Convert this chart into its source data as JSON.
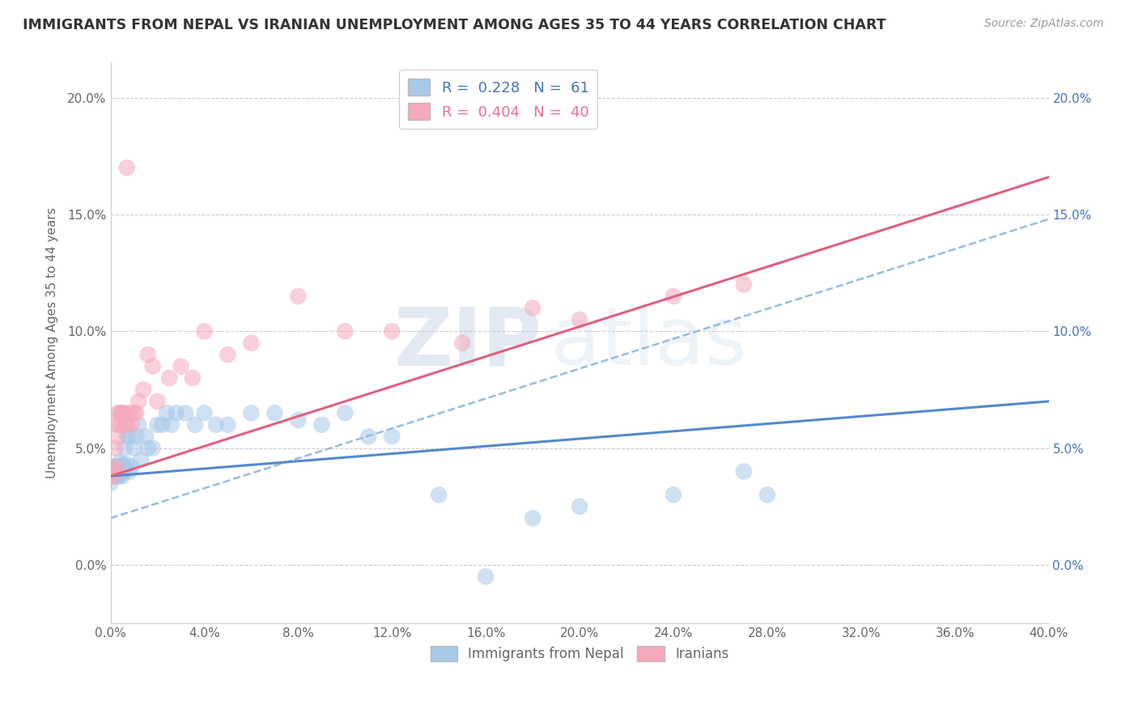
{
  "title": "IMMIGRANTS FROM NEPAL VS IRANIAN UNEMPLOYMENT AMONG AGES 35 TO 44 YEARS CORRELATION CHART",
  "source_text": "Source: ZipAtlas.com",
  "ylabel": "Unemployment Among Ages 35 to 44 years",
  "xlim": [
    0.0,
    0.4
  ],
  "ylim": [
    -0.025,
    0.215
  ],
  "xticks": [
    0.0,
    0.04,
    0.08,
    0.12,
    0.16,
    0.2,
    0.24,
    0.28,
    0.32,
    0.36,
    0.4
  ],
  "yticks": [
    0.0,
    0.05,
    0.1,
    0.15,
    0.2
  ],
  "nepal_R": 0.228,
  "nepal_N": 61,
  "iran_R": 0.404,
  "iran_N": 40,
  "nepal_color": "#A8C8E8",
  "iran_color": "#F4A8BC",
  "nepal_line_color": "#5588CC",
  "nepal_dash_color": "#99BBDD",
  "iran_line_color": "#E06080",
  "watermark_zip": "ZIP",
  "watermark_atlas": "atlas",
  "nepal_x": [
    0.0,
    0.0,
    0.001,
    0.001,
    0.001,
    0.002,
    0.002,
    0.002,
    0.002,
    0.003,
    0.003,
    0.003,
    0.003,
    0.004,
    0.004,
    0.004,
    0.004,
    0.004,
    0.005,
    0.005,
    0.005,
    0.005,
    0.006,
    0.006,
    0.006,
    0.007,
    0.007,
    0.008,
    0.008,
    0.009,
    0.01,
    0.011,
    0.012,
    0.013,
    0.015,
    0.016,
    0.018,
    0.02,
    0.022,
    0.024,
    0.026,
    0.028,
    0.032,
    0.036,
    0.04,
    0.045,
    0.05,
    0.06,
    0.07,
    0.08,
    0.09,
    0.1,
    0.11,
    0.12,
    0.14,
    0.16,
    0.18,
    0.2,
    0.24,
    0.27,
    0.28
  ],
  "nepal_y": [
    0.035,
    0.04,
    0.04,
    0.038,
    0.042,
    0.038,
    0.04,
    0.042,
    0.038,
    0.04,
    0.042,
    0.038,
    0.04,
    0.042,
    0.042,
    0.04,
    0.038,
    0.044,
    0.04,
    0.042,
    0.043,
    0.038,
    0.042,
    0.04,
    0.05,
    0.043,
    0.055,
    0.04,
    0.055,
    0.042,
    0.05,
    0.055,
    0.06,
    0.045,
    0.055,
    0.05,
    0.05,
    0.06,
    0.06,
    0.065,
    0.06,
    0.065,
    0.065,
    0.06,
    0.065,
    0.06,
    0.06,
    0.065,
    0.065,
    0.062,
    0.06,
    0.065,
    0.055,
    0.055,
    0.03,
    -0.005,
    0.02,
    0.025,
    0.03,
    0.04,
    0.03
  ],
  "iran_x": [
    0.0,
    0.001,
    0.001,
    0.002,
    0.002,
    0.002,
    0.003,
    0.003,
    0.003,
    0.004,
    0.004,
    0.005,
    0.005,
    0.006,
    0.006,
    0.007,
    0.007,
    0.008,
    0.009,
    0.01,
    0.011,
    0.012,
    0.014,
    0.016,
    0.018,
    0.02,
    0.025,
    0.03,
    0.035,
    0.04,
    0.05,
    0.06,
    0.08,
    0.1,
    0.12,
    0.15,
    0.18,
    0.2,
    0.24,
    0.27
  ],
  "iran_y": [
    0.038,
    0.04,
    0.038,
    0.042,
    0.04,
    0.05,
    0.06,
    0.055,
    0.065,
    0.065,
    0.06,
    0.065,
    0.065,
    0.06,
    0.065,
    0.17,
    0.06,
    0.065,
    0.06,
    0.065,
    0.065,
    0.07,
    0.075,
    0.09,
    0.085,
    0.07,
    0.08,
    0.085,
    0.08,
    0.1,
    0.09,
    0.095,
    0.115,
    0.1,
    0.1,
    0.095,
    0.11,
    0.105,
    0.115,
    0.12
  ],
  "nepal_line_intercept": 0.038,
  "nepal_line_slope": 0.08,
  "nepal_dash_intercept": 0.02,
  "nepal_dash_slope": 0.32,
  "iran_line_intercept": 0.038,
  "iran_line_slope": 0.32
}
